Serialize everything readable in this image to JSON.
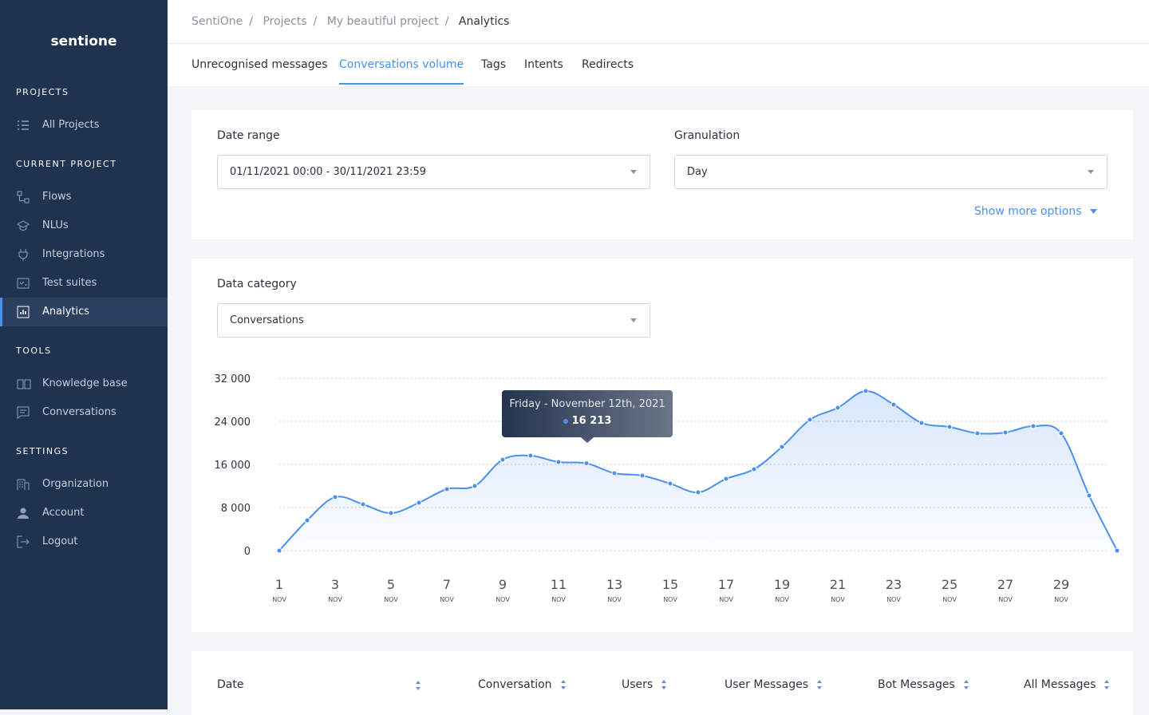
{
  "sidebar": {
    "logo": "sentione",
    "sections": [
      {
        "title": "PROJECTS",
        "items": [
          "All Projects"
        ]
      },
      {
        "title": "CURRENT PROJECT",
        "items": [
          "Flows",
          "NLUs",
          "Integrations",
          "Test suites",
          "Analytics"
        ]
      },
      {
        "title": "TOOLS",
        "items": [
          "Knowledge base",
          "Conversations"
        ]
      },
      {
        "title": "SETTINGS",
        "items": [
          "Organization",
          "Account",
          "Logout"
        ]
      }
    ]
  },
  "breadcrumb": {
    "items": [
      "SentiOne",
      "Projects",
      "My beautiful project",
      "Analytics"
    ],
    "separator": "/"
  },
  "tabs": [
    "Unrecognised messages",
    "Conversations volume",
    "Tags",
    "Intents",
    "Redirects"
  ],
  "filters": {
    "date_range_label": "Date range",
    "date_range_value": "01/11/2021 00:00 - 30/11/2021 23:59",
    "granulation_label": "Granulation",
    "granulation_value": "Day",
    "show_more": "Show more options"
  },
  "data_category": {
    "label": "Data category",
    "value": "Conversations"
  },
  "table": {
    "headers": [
      "Date",
      "Conversation",
      "Users",
      "User Messages",
      "Bot Messages",
      "All Messages"
    ]
  },
  "chart_data": {
    "type": "line",
    "color": "#4a90f0",
    "x": [
      1,
      2,
      3,
      4,
      5,
      6,
      7,
      8,
      9,
      10,
      11,
      12,
      13,
      14,
      15,
      16,
      17,
      18,
      19,
      20,
      21,
      22,
      23,
      24,
      25,
      26,
      27,
      28,
      29,
      30,
      31
    ],
    "values": [
      0,
      5630,
      9930,
      8590,
      6960,
      8890,
      11410,
      12000,
      16890,
      17630,
      16440,
      16213,
      14370,
      13930,
      12440,
      10810,
      13330,
      15110,
      19260,
      24300,
      26520,
      29630,
      27110,
      23700,
      22960,
      21780,
      21930,
      23110,
      21780,
      10220,
      0
    ],
    "xlim": [
      1,
      31
    ],
    "xticks": [
      1,
      3,
      5,
      7,
      9,
      11,
      13,
      15,
      17,
      19,
      21,
      23,
      25,
      27,
      29
    ],
    "xtick_sublabel": "NOV",
    "ylim": [
      0,
      32000
    ],
    "yticks": [
      {
        "value": 0,
        "label": "0"
      },
      {
        "value": 8000,
        "label": "8 000"
      },
      {
        "value": 16000,
        "label": "16 000"
      },
      {
        "value": 24000,
        "label": "24 000"
      },
      {
        "value": 32000,
        "label": "32 000"
      }
    ],
    "grid": true,
    "tooltip": {
      "title": "Friday - November 12th, 2021",
      "label": "16 213"
    }
  }
}
